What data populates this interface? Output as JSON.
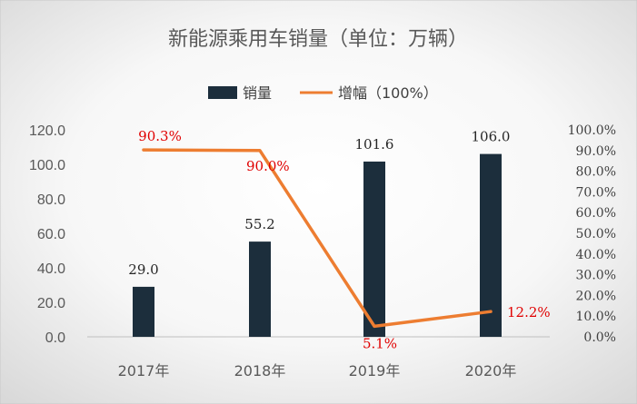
{
  "chart_data": {
    "type": "bar",
    "title": "新能源乘用车销量（单位：万辆）",
    "categories": [
      "2017年",
      "2018年",
      "2019年",
      "2020年"
    ],
    "series": [
      {
        "name": "销量",
        "type": "bar",
        "axis": "left",
        "values": [
          29.0,
          55.2,
          101.6,
          106.0
        ],
        "labels": [
          "29.0",
          "55.2",
          "101.6",
          "106.0"
        ],
        "color": "#1c2e3c"
      },
      {
        "name": "增幅（100%）",
        "type": "line",
        "axis": "right",
        "values": [
          90.3,
          90.0,
          5.1,
          12.2
        ],
        "labels": [
          "90.3%",
          "90.0%",
          "5.1%",
          "12.2%"
        ],
        "color": "#ed7d31",
        "label_color": "#e00000"
      }
    ],
    "y_left": {
      "ylim": [
        0,
        120
      ],
      "ticks": [
        "0.0",
        "20.0",
        "40.0",
        "60.0",
        "80.0",
        "100.0",
        "120.0"
      ]
    },
    "y_right": {
      "ylim": [
        0,
        100
      ],
      "ticks": [
        "0.0%",
        "10.0%",
        "20.0%",
        "30.0%",
        "40.0%",
        "50.0%",
        "60.0%",
        "70.0%",
        "80.0%",
        "90.0%",
        "100.0%"
      ]
    },
    "grid": false,
    "legend_position": "top-center"
  }
}
